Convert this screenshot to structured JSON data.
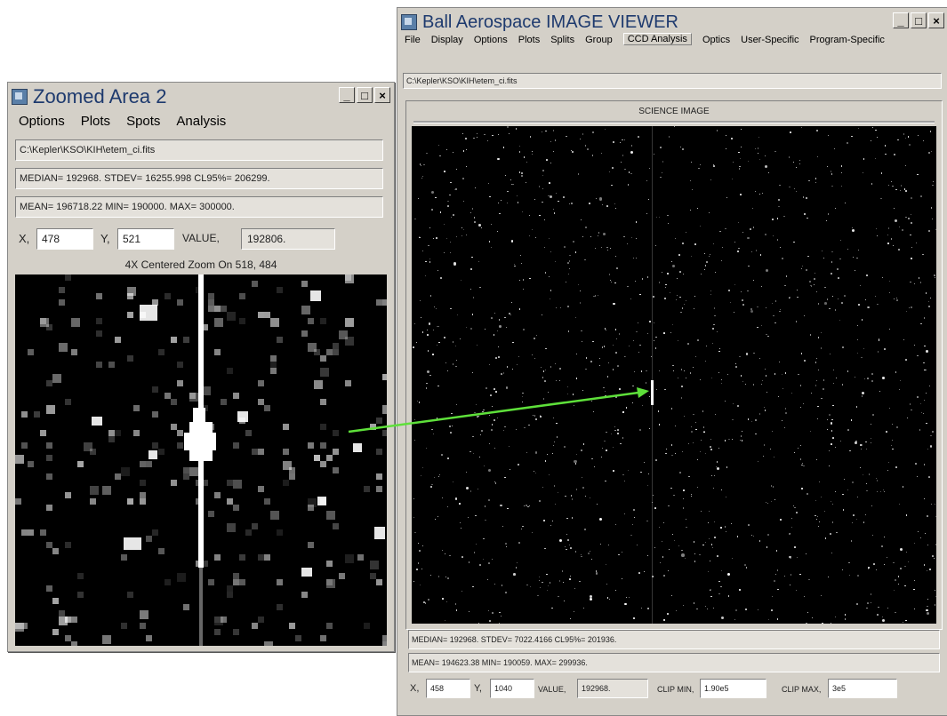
{
  "zoom_window": {
    "title": "Zoomed Area  2",
    "menu": [
      "Options",
      "Plots",
      "Spots",
      "Analysis"
    ],
    "file_path": "C:\\Kepler\\KSO\\KIH\\etem_ci.fits",
    "stats_line1": "MEDIAN= 192968. STDEV= 16255.998 CL95%= 206299.",
    "stats_line2": "MEAN= 196718.22 MIN= 190000. MAX= 300000.",
    "x_label": "X,",
    "x_value": "478",
    "y_label": "Y,",
    "y_value": "521",
    "value_label": "VALUE,",
    "value": "192806.",
    "zoom_caption": "4X Centered Zoom On  518, 484"
  },
  "viewer_window": {
    "title": "Ball Aerospace IMAGE VIEWER",
    "menu": [
      "File",
      "Display",
      "Options",
      "Plots",
      "Splits",
      "Group",
      "CCD Analysis",
      "Optics",
      "User-Specific",
      "Program-Specific"
    ],
    "file_path": "C:\\Kepler\\KSO\\KIH\\etem_ci.fits",
    "panel_title": "SCIENCE IMAGE",
    "stats_line1": "MEDIAN= 192968. STDEV= 7022.4166 CL95%= 201936.",
    "stats_line2": "MEAN= 194623.38 MIN= 190059. MAX= 299936.",
    "x_label": "X,",
    "x_value": "458",
    "y_label": "Y,",
    "y_value": "1040",
    "value_label": "VALUE,",
    "value": "192968.",
    "clip_min_label": "CLIP MIN,",
    "clip_min_value": "1.90e5",
    "clip_max_label": "CLIP MAX,",
    "clip_max_value": "3e5"
  },
  "window_buttons": {
    "minimize": "_",
    "maximize": "□",
    "close": "×"
  },
  "icons": [
    "app-icon",
    "minimize-icon",
    "maximize-icon",
    "close-icon"
  ],
  "colors": {
    "title_text": "#1e3a6e",
    "window_bg": "#d4d0c8",
    "pointer_arrow": "#5ee03a",
    "image_bg": "#000000"
  }
}
